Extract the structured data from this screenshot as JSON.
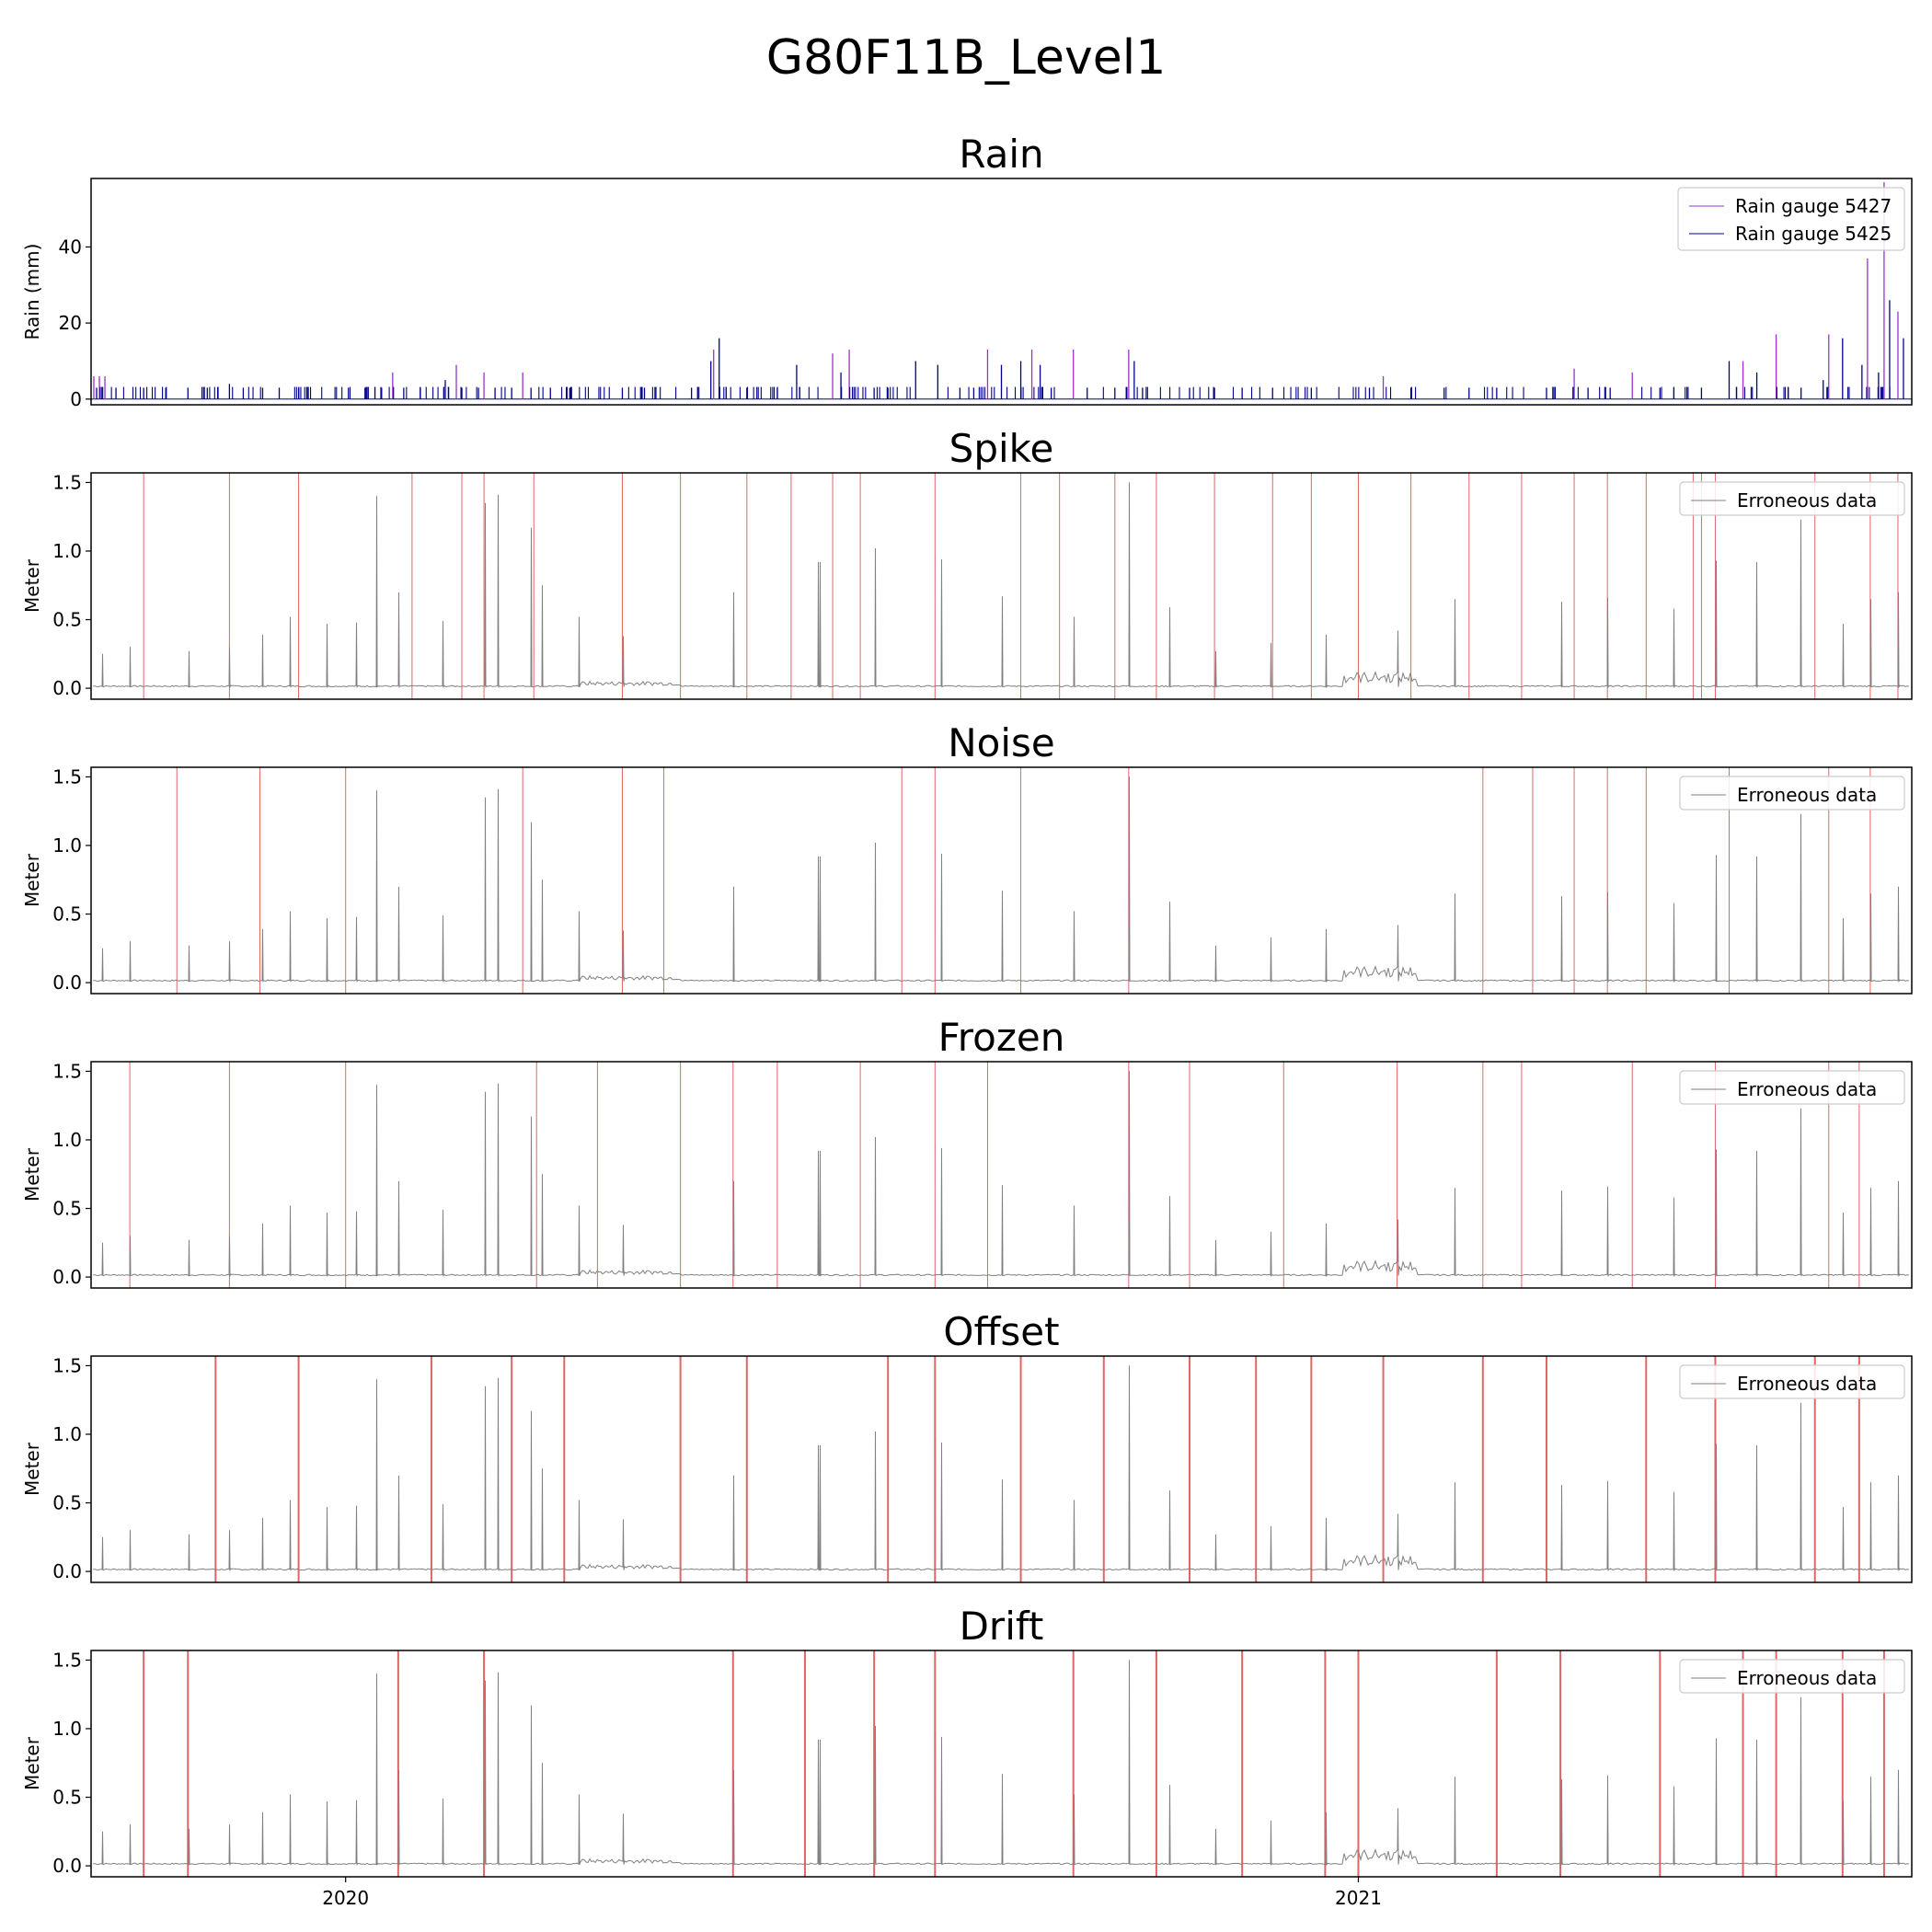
{
  "figure": {
    "suptitle": "G80F11B_Level1",
    "x_ticks": [
      "2020",
      "2021"
    ]
  },
  "colors": {
    "rain_5427": "#9932cc",
    "rain_5425": "#00008b",
    "level_line": "#808080",
    "error_marker": "#e06666",
    "axes": "#000000",
    "legend_border": "#cccccc"
  },
  "chart_data": [
    {
      "type": "line",
      "title": "Rain",
      "ylabel": "Rain (mm)",
      "ylim": [
        -1.5,
        58
      ],
      "yticks": [
        "0",
        "20",
        "40"
      ],
      "xlim": [
        "2019-10-01",
        "2021-07-20"
      ],
      "legend": "top-right",
      "series": [
        {
          "name": "Rain gauge 5427",
          "color_key": "rain_5427",
          "x": [
            "2019-10-02",
            "2019-10-04",
            "2019-10-06",
            "2020-01-18",
            "2020-02-10",
            "2020-02-20",
            "2020-03-05",
            "2020-05-13",
            "2020-06-25",
            "2020-07-01",
            "2020-08-20",
            "2020-09-05",
            "2020-09-20",
            "2020-10-10",
            "2021-01-10",
            "2021-03-20",
            "2021-04-10",
            "2021-05-20",
            "2021-06-01",
            "2021-06-20",
            "2021-07-04",
            "2021-07-10",
            "2021-07-15"
          ],
          "values": [
            6,
            6,
            6,
            7,
            9,
            7,
            7,
            13,
            12,
            13,
            13,
            13,
            13,
            13,
            6,
            8,
            7,
            10,
            17,
            17,
            37,
            57,
            23
          ]
        },
        {
          "name": "Rain gauge 5425",
          "color_key": "rain_5425",
          "x": [
            "2019-10-03",
            "2019-10-10",
            "2019-10-20",
            "2019-10-28",
            "2019-11-05",
            "2019-11-12",
            "2019-11-20",
            "2019-11-25",
            "2019-12-02",
            "2019-12-08",
            "2019-12-15",
            "2020-01-02",
            "2020-01-08",
            "2020-01-14",
            "2020-01-22",
            "2020-01-28",
            "2020-02-06",
            "2020-02-12",
            "2020-02-18",
            "2020-02-24",
            "2020-03-01",
            "2020-03-08",
            "2020-03-15",
            "2020-03-22",
            "2020-04-10",
            "2020-04-18",
            "2020-05-05",
            "2020-05-12",
            "2020-05-15",
            "2020-05-25",
            "2020-06-05",
            "2020-06-12",
            "2020-06-28",
            "2020-07-10",
            "2020-07-15",
            "2020-07-25",
            "2020-08-02",
            "2020-08-10",
            "2020-08-15",
            "2020-08-25",
            "2020-09-01",
            "2020-09-08",
            "2020-09-12",
            "2020-09-25",
            "2020-10-05",
            "2020-10-12",
            "2020-10-15",
            "2020-11-01",
            "2020-11-10",
            "2020-11-20",
            "2020-12-01",
            "2020-12-15",
            "2021-01-05",
            "2021-01-20",
            "2021-02-01",
            "2021-02-10",
            "2021-02-20",
            "2021-03-10",
            "2021-03-25",
            "2021-04-02",
            "2021-04-20",
            "2021-04-25",
            "2021-05-05",
            "2021-05-15",
            "2021-05-25",
            "2021-06-10",
            "2021-06-18",
            "2021-06-25",
            "2021-07-02",
            "2021-07-08",
            "2021-07-12",
            "2021-07-17"
          ],
          "values": [
            3,
            3,
            3,
            3,
            3,
            3,
            4,
            3,
            3,
            3,
            3,
            3,
            3,
            3,
            3,
            3,
            5,
            3,
            3,
            3,
            3,
            3,
            3,
            3,
            3,
            3,
            3,
            10,
            16,
            3,
            3,
            9,
            7,
            3,
            3,
            10,
            9,
            3,
            3,
            9,
            10,
            9,
            3,
            3,
            3,
            10,
            3,
            3,
            3,
            3,
            3,
            3,
            3,
            3,
            3,
            3,
            3,
            3,
            3,
            3,
            3,
            3,
            3,
            10,
            7,
            3,
            5,
            16,
            9,
            7,
            26,
            16
          ]
        }
      ]
    },
    {
      "type": "line",
      "title": "Spike",
      "ylabel": "Meter",
      "ylim": [
        -0.08,
        1.57
      ],
      "yticks": [
        "0.0",
        "0.5",
        "1.0",
        "1.5"
      ],
      "legend": "top-right",
      "series": [
        {
          "name": "Erroneous data",
          "color_key": "level_line"
        }
      ],
      "marked_dates": [
        "2019-10-20",
        "2019-11-20",
        "2019-12-15",
        "2020-01-25",
        "2020-02-12",
        "2020-02-20",
        "2020-03-09",
        "2020-04-10",
        "2020-05-01",
        "2020-05-25",
        "2020-06-10",
        "2020-06-25",
        "2020-07-05",
        "2020-08-01",
        "2020-09-01",
        "2020-09-15",
        "2020-10-05",
        "2020-10-20",
        "2020-11-10",
        "2020-12-01",
        "2020-12-15",
        "2021-01-01",
        "2021-01-20",
        "2021-02-10",
        "2021-03-01",
        "2021-03-20",
        "2021-04-01",
        "2021-04-15",
        "2021-05-02",
        "2021-05-05",
        "2021-05-10",
        "2021-06-15",
        "2021-07-05",
        "2021-07-15"
      ]
    },
    {
      "type": "line",
      "title": "Noise",
      "ylabel": "Meter",
      "ylim": [
        -0.08,
        1.57
      ],
      "yticks": [
        "0.0",
        "0.5",
        "1.0",
        "1.5"
      ],
      "legend": "top-right",
      "series": [
        {
          "name": "Erroneous data",
          "color_key": "level_line"
        }
      ],
      "marked_dates": [
        "2019-11-01",
        "2019-12-01",
        "2020-01-01",
        "2020-03-05",
        "2020-04-10",
        "2020-04-25",
        "2020-07-20",
        "2020-08-01",
        "2020-09-01",
        "2020-10-10",
        "2021-02-15",
        "2021-03-05",
        "2021-03-20",
        "2021-04-01",
        "2021-04-15",
        "2021-05-15",
        "2021-06-20",
        "2021-07-05"
      ]
    },
    {
      "type": "line",
      "title": "Frozen",
      "ylabel": "Meter",
      "ylim": [
        -0.08,
        1.57
      ],
      "yticks": [
        "0.0",
        "0.5",
        "1.0",
        "1.5"
      ],
      "legend": "top-right",
      "series": [
        {
          "name": "Erroneous data",
          "color_key": "level_line"
        }
      ],
      "marked_dates": [
        "2019-10-15",
        "2019-11-20",
        "2020-01-01",
        "2020-03-10",
        "2020-04-01",
        "2020-05-01",
        "2020-05-20",
        "2020-06-05",
        "2020-07-05",
        "2020-08-01",
        "2020-08-20",
        "2020-10-10",
        "2020-11-01",
        "2020-12-05",
        "2021-01-15",
        "2021-02-15",
        "2021-03-01",
        "2021-04-10",
        "2021-05-10",
        "2021-06-20",
        "2021-07-01"
      ]
    },
    {
      "type": "line",
      "title": "Offset",
      "ylabel": "Meter",
      "ylim": [
        -0.08,
        1.57
      ],
      "yticks": [
        "0.0",
        "0.5",
        "1.0",
        "1.5"
      ],
      "legend": "top-right",
      "series": [
        {
          "name": "Erroneous data",
          "color_key": "level_line"
        }
      ],
      "marked_dates": [
        "2019-11-15",
        "2019-12-15",
        "2020-02-01",
        "2020-03-01",
        "2020-03-20",
        "2020-05-01",
        "2020-05-25",
        "2020-07-15",
        "2020-08-01",
        "2020-09-01",
        "2020-10-01",
        "2020-11-01",
        "2020-11-25",
        "2020-12-15",
        "2021-01-10",
        "2021-02-15",
        "2021-03-10",
        "2021-04-15",
        "2021-05-10",
        "2021-06-15",
        "2021-07-01"
      ]
    },
    {
      "type": "line",
      "title": "Drift",
      "ylabel": "Meter",
      "ylim": [
        -0.08,
        1.57
      ],
      "yticks": [
        "0.0",
        "0.5",
        "1.0",
        "1.5"
      ],
      "legend": "top-right",
      "series": [
        {
          "name": "Erroneous data",
          "color_key": "level_line"
        }
      ],
      "marked_dates": [
        "2019-10-20",
        "2019-11-05",
        "2020-01-20",
        "2020-02-20",
        "2020-05-20",
        "2020-06-15",
        "2020-07-10",
        "2020-08-01",
        "2020-09-20",
        "2020-10-20",
        "2020-11-20",
        "2020-12-20",
        "2021-01-01",
        "2021-02-20",
        "2021-03-15",
        "2021-04-20",
        "2021-05-20",
        "2021-06-01",
        "2021-06-25",
        "2021-07-10"
      ]
    }
  ],
  "water_level_series": {
    "name": "Erroneous data",
    "baseline": 0.01,
    "peaks": [
      {
        "x": "2019-10-05",
        "y": 0.25
      },
      {
        "x": "2019-10-15",
        "y": 0.3
      },
      {
        "x": "2019-11-05",
        "y": 0.27
      },
      {
        "x": "2019-11-20",
        "y": 0.3
      },
      {
        "x": "2019-12-02",
        "y": 0.39
      },
      {
        "x": "2019-12-12",
        "y": 0.52
      },
      {
        "x": "2019-12-25",
        "y": 0.47
      },
      {
        "x": "2020-01-05",
        "y": 0.48
      },
      {
        "x": "2020-01-12",
        "y": 1.4
      },
      {
        "x": "2020-01-20",
        "y": 0.7
      },
      {
        "x": "2020-02-05",
        "y": 0.49
      },
      {
        "x": "2020-02-20",
        "y": 1.35
      },
      {
        "x": "2020-02-25",
        "y": 1.41
      },
      {
        "x": "2020-03-08",
        "y": 1.17
      },
      {
        "x": "2020-03-12",
        "y": 0.75
      },
      {
        "x": "2020-03-25",
        "y": 0.52
      },
      {
        "x": "2020-04-10",
        "y": 0.38
      },
      {
        "x": "2020-05-20",
        "y": 0.7
      },
      {
        "x": "2020-06-20",
        "y": 0.92
      },
      {
        "x": "2020-07-10",
        "y": 1.02
      },
      {
        "x": "2020-08-03",
        "y": 0.94
      },
      {
        "x": "2020-08-25",
        "y": 0.67
      },
      {
        "x": "2020-09-20",
        "y": 0.52
      },
      {
        "x": "2020-10-10",
        "y": 1.5
      },
      {
        "x": "2020-10-25",
        "y": 0.59
      },
      {
        "x": "2020-11-10",
        "y": 0.27
      },
      {
        "x": "2020-11-30",
        "y": 0.33
      },
      {
        "x": "2020-12-20",
        "y": 0.39
      },
      {
        "x": "2021-01-15",
        "y": 0.42
      },
      {
        "x": "2021-02-05",
        "y": 0.65
      },
      {
        "x": "2021-03-15",
        "y": 0.63
      },
      {
        "x": "2021-04-01",
        "y": 0.66
      },
      {
        "x": "2021-04-25",
        "y": 0.58
      },
      {
        "x": "2021-05-10",
        "y": 0.93
      },
      {
        "x": "2021-05-25",
        "y": 0.92
      },
      {
        "x": "2021-06-10",
        "y": 1.23
      },
      {
        "x": "2021-06-25",
        "y": 0.47
      },
      {
        "x": "2021-07-05",
        "y": 0.65
      },
      {
        "x": "2021-07-15",
        "y": 0.7
      }
    ]
  }
}
